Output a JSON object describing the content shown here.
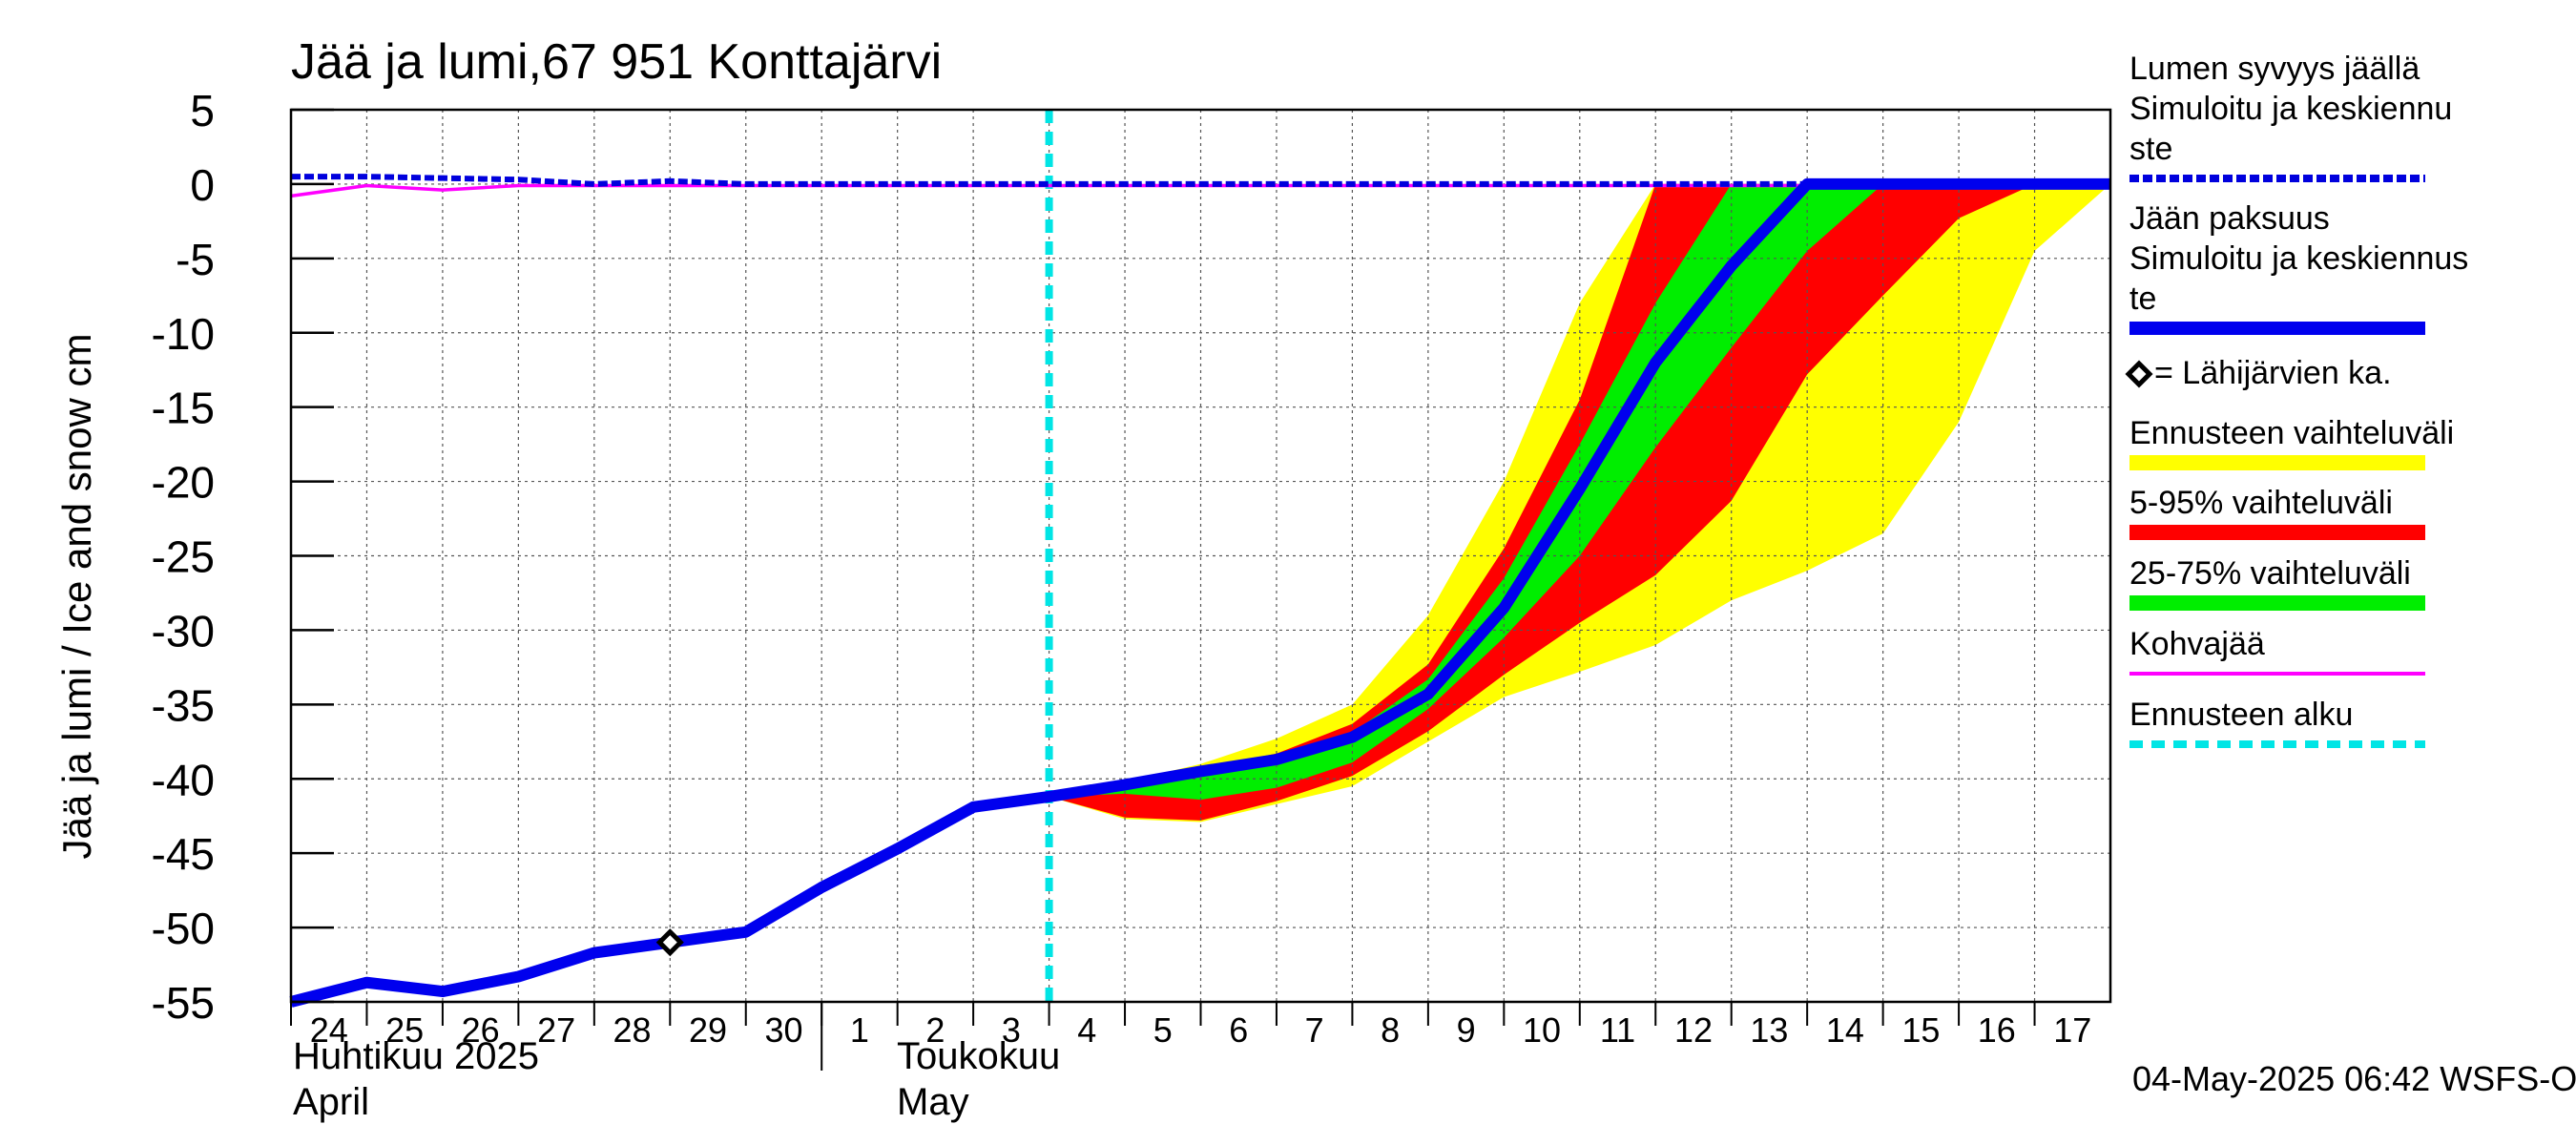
{
  "chart_data": {
    "type": "area",
    "title": "Jää ja lumi,67 951 Konttajärvi",
    "ylabel": "Jää ja lumi / Ice and snow    cm",
    "ylim": [
      -55,
      5
    ],
    "yticks": [
      5,
      0,
      -5,
      -10,
      -15,
      -20,
      -25,
      -30,
      -35,
      -40,
      -45,
      -50,
      -55
    ],
    "grid": true,
    "xlim": [
      0,
      24
    ],
    "x_day_labels": [
      "24",
      "25",
      "26",
      "27",
      "28",
      "29",
      "30",
      "1",
      "2",
      "3",
      "4",
      "5",
      "6",
      "7",
      "8",
      "9",
      "10",
      "11",
      "12",
      "13",
      "14",
      "15",
      "16",
      "17"
    ],
    "month_labels": [
      {
        "fi": "Huhtikuu  2025",
        "en": "April",
        "start_day_index": 0
      },
      {
        "fi": "Toukokuu",
        "en": "May",
        "start_day_index": 8
      }
    ],
    "forecast_start_x": 10,
    "timestamp": "04-May-2025 06:42 WSFS-O",
    "legend_position": "right",
    "legend": [
      {
        "label": "Lumen syvyys jäällä",
        "label2": "   Simuloitu ja keskiennu",
        "label3": "ste",
        "style": "dashed",
        "color": "#0000dd"
      },
      {
        "label": "Jään paksuus",
        "label2": "   Simuloitu ja keskiennus",
        "label3": "te",
        "style": "solid-thick",
        "color": "#0000ee"
      },
      {
        "label": "= Lähijärvien ka.",
        "style": "marker",
        "color": "#000000"
      },
      {
        "label": "Ennusteen vaihteluväli",
        "style": "band",
        "color": "#ffff00"
      },
      {
        "label": "5-95% vaihteluväli",
        "style": "band",
        "color": "#ff0000"
      },
      {
        "label": "25-75% vaihteluväli",
        "style": "band",
        "color": "#00ee00"
      },
      {
        "label": "Kohvajää",
        "style": "line",
        "color": "#ff00ff"
      },
      {
        "label": "Ennusteen alku",
        "style": "dashed-thick",
        "color": "#00e5e5"
      }
    ],
    "series": [
      {
        "name": "Jään paksuus",
        "x": [
          0,
          1,
          2,
          3,
          4,
          5,
          6,
          7,
          8,
          9,
          10,
          11,
          12,
          13,
          14,
          15,
          16,
          17,
          18,
          19,
          20,
          21,
          22,
          23,
          24
        ],
        "values": [
          -55,
          -53.7,
          -54.3,
          -53.3,
          -51.7,
          -51,
          -50.3,
          -47.3,
          -44.7,
          -41.9,
          -41.2,
          -40.4,
          -39.5,
          -38.7,
          -37.2,
          -34.3,
          -28.5,
          -20.5,
          -12,
          -5.5,
          0,
          0,
          0,
          0,
          0
        ]
      },
      {
        "name": "Lumen syvyys jäällä",
        "x": [
          0,
          1,
          2,
          3,
          4,
          5,
          6,
          7,
          8,
          9,
          10,
          11,
          12,
          13,
          14,
          15,
          16,
          17,
          18,
          19,
          20,
          21,
          22,
          23,
          24
        ],
        "values": [
          0.5,
          0.5,
          0.4,
          0.3,
          0,
          0.2,
          0,
          0,
          0,
          0,
          0,
          0,
          0,
          0,
          0,
          0,
          0,
          0,
          0,
          0,
          0,
          0,
          0,
          0,
          0
        ]
      },
      {
        "name": "Kohvajää",
        "x": [
          0,
          1,
          2,
          3,
          4,
          5,
          6,
          7,
          8,
          9,
          10,
          11,
          12,
          13,
          14,
          15,
          16,
          17,
          18,
          19,
          20,
          21,
          22,
          23,
          24
        ],
        "values": [
          -0.8,
          -0.1,
          -0.4,
          -0.1,
          -0.1,
          -0.1,
          -0.1,
          -0.1,
          -0.1,
          -0.1,
          -0.1,
          -0.1,
          -0.1,
          -0.1,
          -0.1,
          -0.1,
          -0.1,
          -0.1,
          -0.1,
          -0.1,
          -0.1,
          -0.1,
          -0.1,
          -0.1,
          -0.1
        ]
      },
      {
        "name": "Ennusteen vaihteluväli",
        "x": [
          10,
          11,
          12,
          13,
          14,
          15,
          16,
          17,
          18,
          19,
          20,
          21,
          22,
          23,
          24
        ],
        "upper": [
          -41.2,
          -40.2,
          -39,
          -37.3,
          -35,
          -29,
          -20,
          -8,
          0,
          0,
          0,
          0,
          0,
          0,
          0
        ],
        "lower": [
          -41.2,
          -42.7,
          -42.9,
          -41.7,
          -40.5,
          -37.5,
          -34.5,
          -32.8,
          -31,
          -28,
          -26,
          -23.5,
          -16,
          -4.5,
          0
        ]
      },
      {
        "name": "5-95% vaihteluväli",
        "x": [
          10,
          11,
          12,
          13,
          14,
          15,
          16,
          17,
          18,
          19,
          20,
          21,
          22,
          23,
          24
        ],
        "upper": [
          -41.2,
          -40.3,
          -39.3,
          -38.3,
          -36.3,
          -32.3,
          -24.5,
          -14.5,
          0,
          0,
          0,
          0,
          0,
          0,
          0
        ],
        "lower": [
          -41.2,
          -42.6,
          -42.8,
          -41.5,
          -39.8,
          -36.8,
          -33,
          -29.5,
          -26.3,
          -21.3,
          -12.8,
          -7.5,
          -2.3,
          0,
          0
        ]
      },
      {
        "name": "25-75% vaihteluväli",
        "x": [
          10,
          11,
          12,
          13,
          14,
          15,
          16,
          17,
          18,
          19,
          20,
          21,
          22,
          23,
          24
        ],
        "upper": [
          -41.2,
          -40.3,
          -39.5,
          -38.6,
          -36.9,
          -33.3,
          -26.5,
          -17.5,
          -8,
          0,
          0,
          0,
          0,
          0,
          0
        ],
        "lower": [
          -41.2,
          -41,
          -41.4,
          -40.6,
          -38.9,
          -35.3,
          -30.5,
          -25,
          -17.7,
          -11,
          -4.5,
          0,
          0,
          0,
          0
        ]
      }
    ],
    "markers": [
      {
        "name": "Lähijärvien ka.",
        "x": 5,
        "y": -51
      }
    ]
  }
}
